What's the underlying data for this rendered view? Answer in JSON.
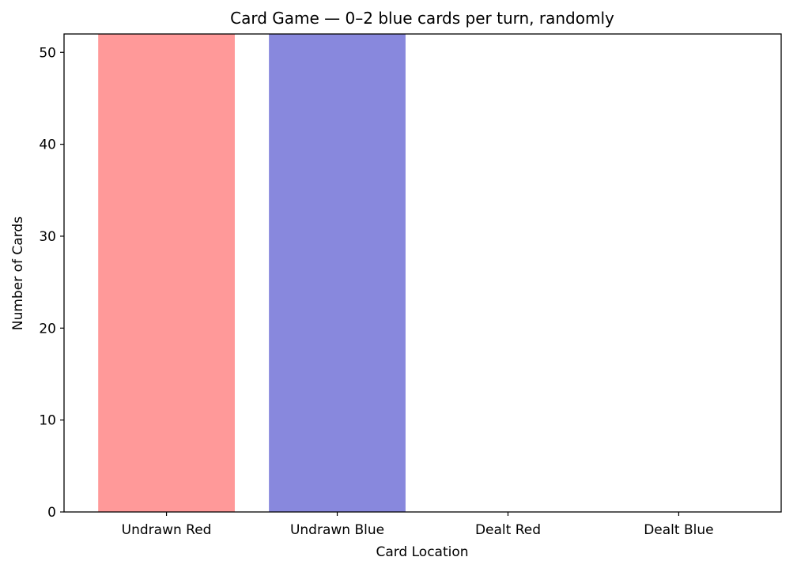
{
  "chart_data": {
    "type": "bar",
    "title": "Card Game — 0–2 blue cards per turn, randomly",
    "xlabel": "Card Location",
    "ylabel": "Number of Cards",
    "categories": [
      "Undrawn Red",
      "Undrawn Blue",
      "Dealt Red",
      "Dealt Blue"
    ],
    "values": [
      52,
      52,
      0,
      0
    ],
    "colors": [
      "#ff9999",
      "#8888dd",
      "#ff9999",
      "#8888dd"
    ],
    "ylim": [
      0,
      52
    ],
    "yticks": [
      0,
      10,
      20,
      30,
      40,
      50
    ],
    "grid": false
  }
}
